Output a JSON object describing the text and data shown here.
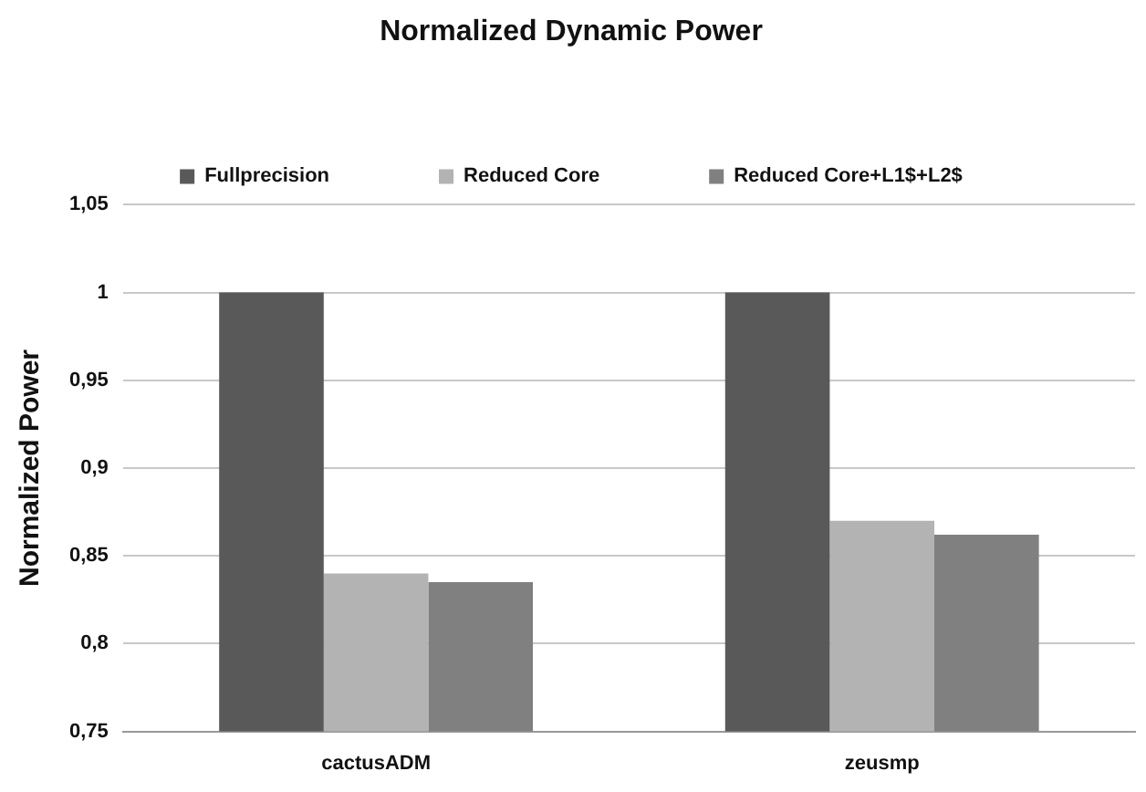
{
  "chart_data": {
    "type": "bar",
    "title": "Normalized Dynamic Power",
    "ylabel": "Normalized Power",
    "categories": [
      "cactusADM",
      "zeusmp"
    ],
    "series": [
      {
        "name": "Fullprecision",
        "color": "#595959",
        "values": [
          1,
          1
        ]
      },
      {
        "name": "Reduced Core",
        "color": "#b3b3b3",
        "values": [
          0.84,
          0.87
        ]
      },
      {
        "name": "Reduced Core+L1$+L2$",
        "color": "#808080",
        "values": [
          0.835,
          0.862
        ]
      }
    ],
    "ylim": [
      0.75,
      1.05
    ],
    "yticks": [
      {
        "value": 0.75,
        "label": "0,75"
      },
      {
        "value": 0.8,
        "label": "0,8"
      },
      {
        "value": 0.85,
        "label": "0,85"
      },
      {
        "value": 0.9,
        "label": "0,9"
      },
      {
        "value": 0.95,
        "label": "0,95"
      },
      {
        "value": 1,
        "label": "1"
      },
      {
        "value": 1.05,
        "label": "1,05"
      }
    ],
    "grid": "y",
    "legend": "top"
  }
}
